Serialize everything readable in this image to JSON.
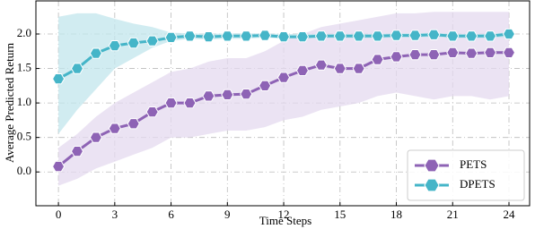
{
  "chart_data": {
    "type": "line",
    "x_label": "Time Steps",
    "y_label": "Average Predicted Return",
    "x": [
      0,
      1,
      2,
      3,
      4,
      5,
      6,
      7,
      8,
      9,
      10,
      11,
      12,
      13,
      14,
      15,
      16,
      17,
      18,
      19,
      20,
      21,
      22,
      23,
      24
    ],
    "xlim": [
      -1.2,
      25.1
    ],
    "ylim": [
      -0.49,
      2.48
    ],
    "xticks": [
      0,
      3,
      6,
      9,
      12,
      15,
      18,
      21,
      24
    ],
    "yticks": [
      {
        "value": 0,
        "label": "0.0"
      },
      {
        "value": 0.5,
        "label": "0.5"
      },
      {
        "value": 1,
        "label": "1.0"
      },
      {
        "value": 1.5,
        "label": "1.5"
      },
      {
        "value": 2,
        "label": "2.0"
      }
    ],
    "grid": true,
    "legend": "lower right",
    "series": [
      {
        "name": "PETS",
        "color": "#8e63b5",
        "band_color": "#e4d9ef",
        "values": [
          0.08,
          0.3,
          0.5,
          0.63,
          0.7,
          0.87,
          1.0,
          1.0,
          1.1,
          1.12,
          1.13,
          1.25,
          1.37,
          1.47,
          1.55,
          1.5,
          1.5,
          1.63,
          1.67,
          1.7,
          1.7,
          1.73,
          1.72,
          1.73,
          1.73
        ],
        "lower": [
          -0.2,
          -0.1,
          0.05,
          0.15,
          0.25,
          0.35,
          0.5,
          0.5,
          0.55,
          0.6,
          0.6,
          0.65,
          0.75,
          0.8,
          0.9,
          0.95,
          1.0,
          1.1,
          1.15,
          1.1,
          1.05,
          1.1,
          1.1,
          1.05,
          1.1
        ],
        "upper": [
          0.35,
          0.55,
          0.8,
          1.0,
          1.15,
          1.3,
          1.45,
          1.5,
          1.6,
          1.65,
          1.65,
          1.75,
          1.9,
          2.0,
          2.1,
          2.15,
          2.2,
          2.25,
          2.3,
          2.3,
          2.32,
          2.32,
          2.32,
          2.32,
          2.32
        ]
      },
      {
        "name": "DPETS",
        "color": "#45b5c8",
        "band_color": "#c2e6ec",
        "values": [
          1.35,
          1.5,
          1.72,
          1.83,
          1.87,
          1.9,
          1.95,
          1.97,
          1.96,
          1.97,
          1.97,
          1.98,
          1.96,
          1.96,
          1.97,
          1.97,
          1.97,
          1.97,
          1.98,
          1.98,
          1.99,
          1.97,
          1.97,
          1.97,
          2.0
        ],
        "lower": [
          0.55,
          0.9,
          1.2,
          1.5,
          1.65,
          1.8,
          1.9,
          1.93,
          1.92,
          1.93,
          1.93,
          1.95,
          1.93,
          1.93,
          1.94,
          1.94,
          1.94,
          1.94,
          1.95,
          1.95,
          1.96,
          1.94,
          1.94,
          1.94,
          1.96
        ],
        "upper": [
          2.25,
          2.3,
          2.3,
          2.22,
          2.15,
          2.1,
          2.02,
          2.01,
          2.0,
          2.01,
          2.01,
          2.01,
          2.0,
          2.0,
          2.0,
          2.0,
          2.0,
          2.0,
          2.01,
          2.01,
          2.02,
          2.0,
          2.0,
          2.0,
          2.03
        ]
      }
    ]
  }
}
